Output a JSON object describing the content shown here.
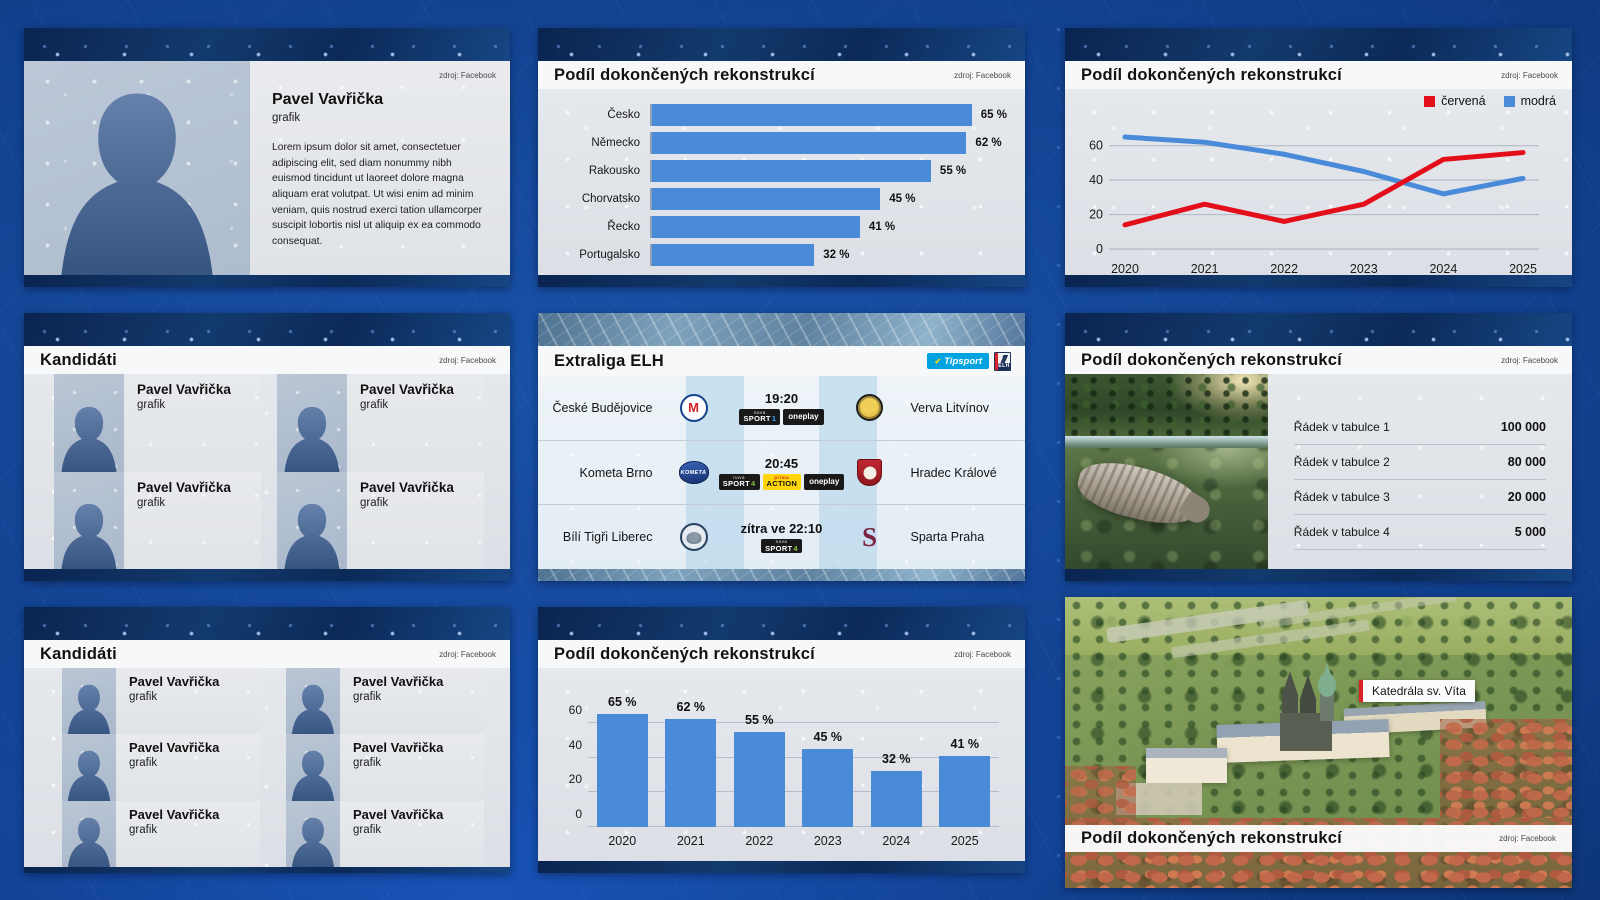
{
  "source_label": "zdroj: Facebook",
  "accent_colors": {
    "bar_blue": "#4a8bd9",
    "line_red": "#e40e1b",
    "navy_texture": "#0d2b5e"
  },
  "slides": {
    "profile": {
      "name": "Pavel Vavřička",
      "role": "grafik",
      "bio": "Lorem ipsum dolor sit amet, consectetuer adipiscing elit, sed diam nonummy nibh euismod tincidunt ut laoreet dolore magna aliquam erat volutpat. Ut wisi enim ad minim veniam, quis nostrud exerci tation ullamcorper suscipit lobortis nisl ut aliquip ex ea commodo consequat."
    },
    "candidates_4": {
      "title": "Kandidáti",
      "cards": [
        {
          "name": "Pavel Vavřička",
          "role": "grafik"
        },
        {
          "name": "Pavel Vavřička",
          "role": "grafik"
        },
        {
          "name": "Pavel Vavřička",
          "role": "grafik"
        },
        {
          "name": "Pavel Vavřička",
          "role": "grafik"
        }
      ]
    },
    "candidates_6": {
      "title": "Kandidáti",
      "cards": [
        {
          "name": "Pavel Vavřička",
          "role": "grafik"
        },
        {
          "name": "Pavel Vavřička",
          "role": "grafik"
        },
        {
          "name": "Pavel Vavřička",
          "role": "grafik"
        },
        {
          "name": "Pavel Vavřička",
          "role": "grafik"
        },
        {
          "name": "Pavel Vavřička",
          "role": "grafik"
        },
        {
          "name": "Pavel Vavřička",
          "role": "grafik"
        }
      ]
    },
    "hockey": {
      "title": "Extraliga ELH",
      "sponsor_logo": "Tipsport",
      "league_logo": "ELH",
      "matches": [
        {
          "home": "České Budějovice",
          "home_logo": "motor-ceske-budejovice",
          "home_logo_text": "M",
          "time": "19:20",
          "channels": [
            {
              "kind": "nova-sport",
              "brand": "nova",
              "label": "SPORT",
              "num": "1"
            },
            {
              "kind": "oneplay",
              "label": "oneplay"
            }
          ],
          "away": "Verva Litvínov",
          "away_logo": "verva-litvinov",
          "away_logo_text": ""
        },
        {
          "home": "Kometa Brno",
          "home_logo": "kometa-brno",
          "home_logo_text": "KOMETA",
          "time": "20:45",
          "channels": [
            {
              "kind": "nova-sport",
              "brand": "nova",
              "label": "SPORT",
              "num": "4"
            },
            {
              "kind": "prima-action",
              "brand": "prima",
              "label": "ACTION"
            },
            {
              "kind": "oneplay",
              "label": "oneplay"
            }
          ],
          "away": "Hradec Králové",
          "away_logo": "mountfield-hk",
          "away_logo_text": ""
        },
        {
          "home": "Bílí Tigři Liberec",
          "home_logo": "bili-tygri-liberec",
          "home_logo_text": "",
          "time": "zítra ve 22:10",
          "channels": [
            {
              "kind": "nova-sport",
              "brand": "nova",
              "label": "SPORT",
              "num": "4"
            }
          ],
          "away": "Sparta Praha",
          "away_logo": "sparta-praha",
          "away_logo_text": "S"
        }
      ]
    },
    "table_image": {
      "title": "Podíl dokončených rekonstrukcí",
      "rows": [
        {
          "label": "Řádek v tabulce 1",
          "value": "100 000"
        },
        {
          "label": "Řádek v tabulce 2",
          "value": "80 000"
        },
        {
          "label": "Řádek v tabulce 3",
          "value": "20 000"
        },
        {
          "label": "Řádek v tabulce 4",
          "value": "5 000"
        }
      ]
    },
    "prague": {
      "title": "Podíl dokončených rekonstrukcí",
      "map_label": "Katedrála sv. Víta"
    }
  },
  "chart_data": [
    {
      "id": "countries-bar-horizontal",
      "type": "bar",
      "orientation": "horizontal",
      "title": "Podíl dokončených rekonstrukcí",
      "categories": [
        "Česko",
        "Německo",
        "Rakousko",
        "Chorvatsko",
        "Řecko",
        "Portugalsko"
      ],
      "values": [
        65,
        62,
        55,
        45,
        41,
        32
      ],
      "value_suffix": " %",
      "xlim": [
        0,
        70
      ],
      "bar_color": "#4a8bd9",
      "grid": false
    },
    {
      "id": "years-line",
      "type": "line",
      "title": "Podíl dokončených rekonstrukcí",
      "x": [
        "2020",
        "2021",
        "2022",
        "2023",
        "2024",
        "2025"
      ],
      "series": [
        {
          "name": "červená",
          "color": "#e40e1b",
          "values": [
            14,
            26,
            16,
            26,
            52,
            56
          ]
        },
        {
          "name": "modrá",
          "color": "#4a8bd9",
          "values": [
            65,
            62,
            55,
            45,
            32,
            41
          ]
        }
      ],
      "yticks": [
        0,
        20,
        40,
        60
      ],
      "ylim": [
        0,
        72
      ],
      "grid": true,
      "legend_position": "top-right"
    },
    {
      "id": "years-bar-vertical",
      "type": "bar",
      "orientation": "vertical",
      "title": "Podíl dokončených rekonstrukcí",
      "categories": [
        "2020",
        "2021",
        "2022",
        "2023",
        "2024",
        "2025"
      ],
      "values": [
        65,
        62,
        55,
        45,
        32,
        41
      ],
      "value_suffix": " %",
      "yticks": [
        0,
        20,
        40,
        60
      ],
      "ylim": [
        0,
        72
      ],
      "bar_color": "#4a8bd9",
      "grid": true
    }
  ]
}
